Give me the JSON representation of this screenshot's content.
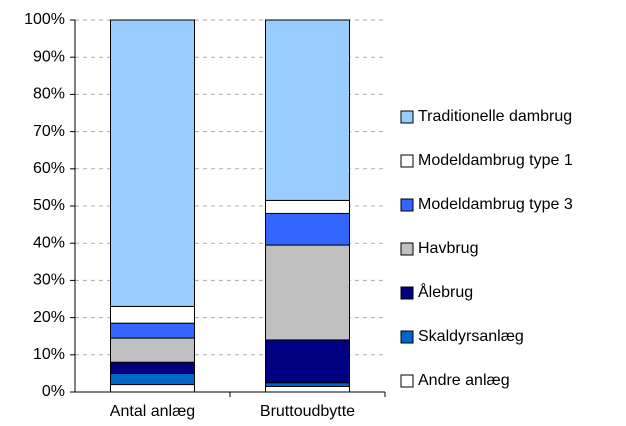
{
  "chart_data": {
    "type": "stacked-bar",
    "categories": [
      "Antal anlæg",
      "Bruttoudbytte"
    ],
    "series": [
      {
        "name": "Andre anlæg",
        "color": "#ffffff",
        "values": [
          2,
          1.5
        ]
      },
      {
        "name": "Skaldyrsanlæg",
        "color": "#0066cc",
        "values": [
          3,
          1
        ]
      },
      {
        "name": "Ålebrug",
        "color": "#000080",
        "values": [
          3,
          11.5
        ]
      },
      {
        "name": "Havbrug",
        "color": "#c0c0c0",
        "values": [
          6.5,
          25.5
        ]
      },
      {
        "name": "Modeldambrug type 3",
        "color": "#3366ff",
        "values": [
          4,
          8.5
        ]
      },
      {
        "name": "Modeldambrug type 1",
        "color": "#ffffff",
        "values": [
          4.5,
          3.5
        ]
      },
      {
        "name": "Traditionelle dambrug",
        "color": "#99ccff",
        "values": [
          77,
          48.5
        ]
      }
    ],
    "ylim": [
      0,
      100
    ],
    "yticks": [
      {
        "value": 0,
        "label": "0%"
      },
      {
        "value": 10,
        "label": "10%"
      },
      {
        "value": 20,
        "label": "20%"
      },
      {
        "value": 30,
        "label": "30%"
      },
      {
        "value": 40,
        "label": "40%"
      },
      {
        "value": 50,
        "label": "50%"
      },
      {
        "value": 60,
        "label": "60%"
      },
      {
        "value": 70,
        "label": "70%"
      },
      {
        "value": 80,
        "label": "80%"
      },
      {
        "value": 90,
        "label": "90%"
      },
      {
        "value": 100,
        "label": "100%"
      }
    ],
    "grid": true
  }
}
